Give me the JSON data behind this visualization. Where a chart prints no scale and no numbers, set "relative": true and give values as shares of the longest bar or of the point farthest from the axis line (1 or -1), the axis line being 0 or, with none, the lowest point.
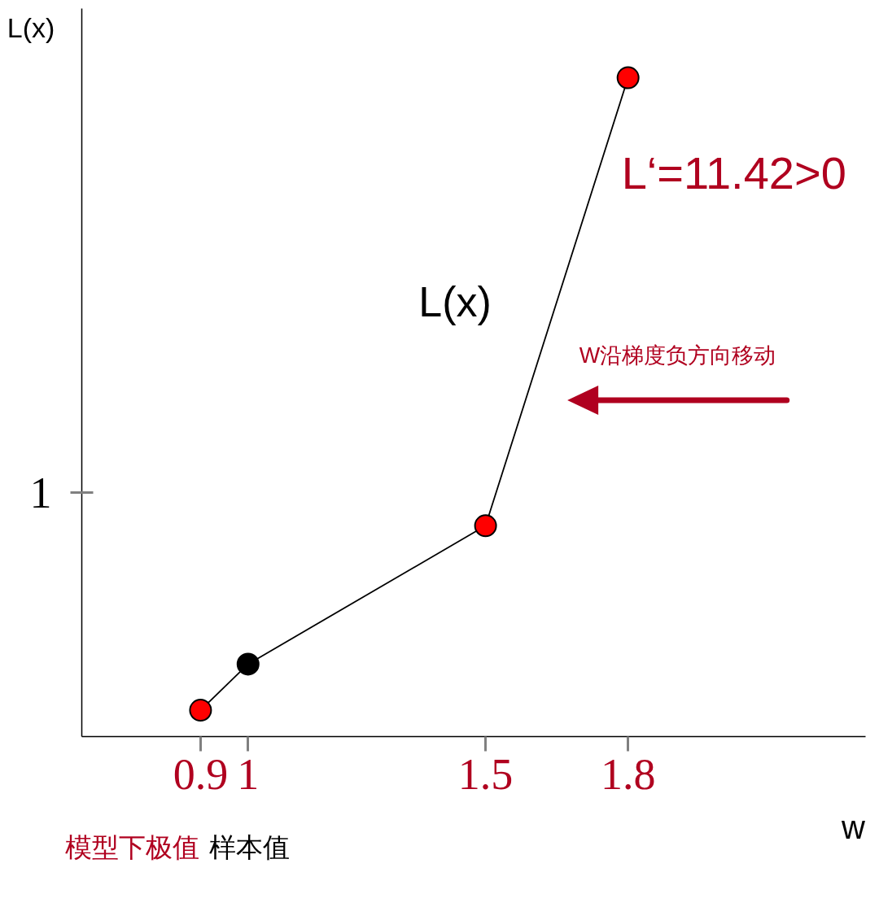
{
  "chart_data": {
    "type": "line",
    "xlabel": "w",
    "ylabel": "L(x)",
    "relative": true,
    "x": [
      0.9,
      1,
      1.5,
      1.8
    ],
    "series": [
      {
        "name": "L(x)",
        "color": "#000000",
        "colors": [
          "#ff0000",
          "#000000",
          "#ff0000",
          "#ff0000"
        ],
        "values": [
          0.04,
          0.11,
          0.32,
          1
        ]
      }
    ],
    "xlim": [
      0.65,
      2.3
    ],
    "xticks": [
      0.9,
      1,
      1.5,
      1.8
    ],
    "marker": "circle",
    "line_style": "solid",
    "annotations": [
      {
        "text": "L‘=11.42>0",
        "x": 1.8,
        "y": 1
      },
      "W沿梯度负方向移动",
      "模型下极值",
      "样本值",
      "1"
    ]
  }
}
